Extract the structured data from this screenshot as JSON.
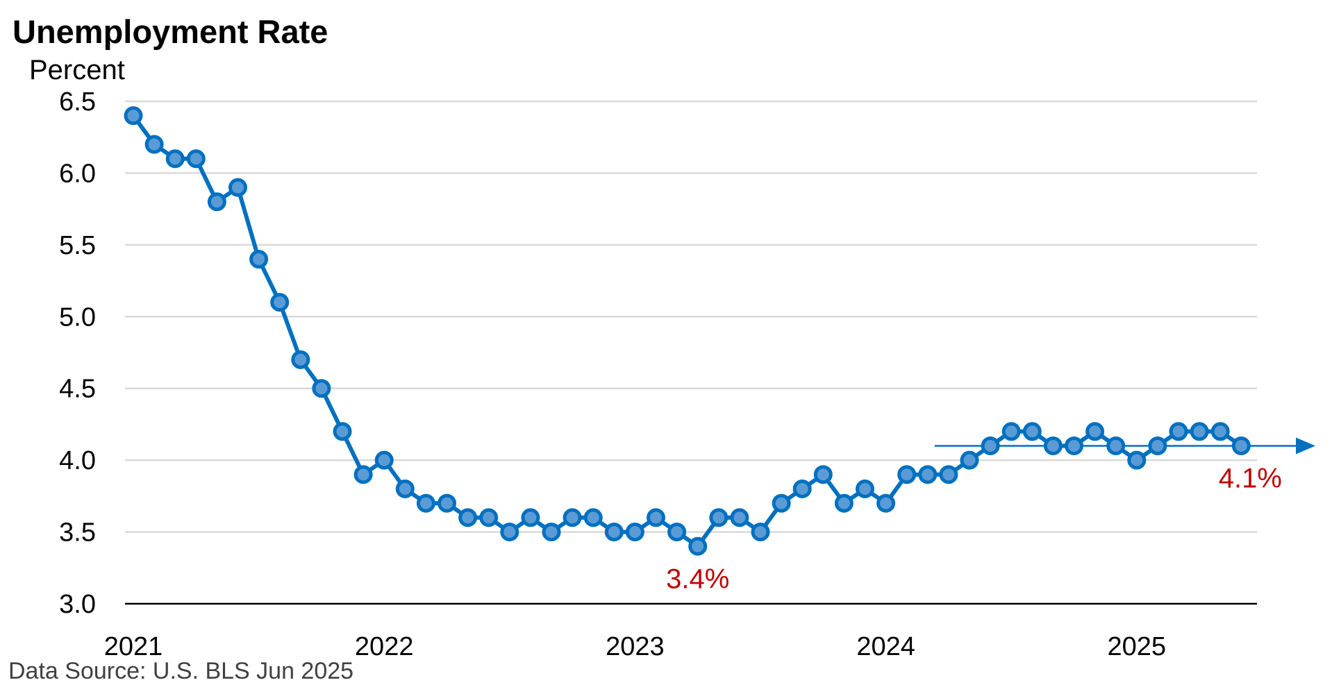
{
  "chart_data": {
    "type": "line",
    "title": "Unemployment Rate",
    "ylabel": "Percent",
    "source": "Data Source: U.S. BLS Jun 2025",
    "ylim": [
      3.0,
      6.5
    ],
    "yticks": [
      "3.0",
      "3.5",
      "4.0",
      "4.5",
      "5.0",
      "5.5",
      "6.0",
      "6.5"
    ],
    "xticks": [
      "2021",
      "2022",
      "2023",
      "2024",
      "2025"
    ],
    "grid": true,
    "start": "2021-01",
    "series": [
      {
        "name": "",
        "color": "#0070C0",
        "marker_fill": "#5B9BD5",
        "values": [
          6.4,
          6.2,
          6.1,
          6.1,
          5.8,
          5.9,
          5.4,
          5.1,
          4.7,
          4.5,
          4.2,
          3.9,
          4.0,
          3.8,
          3.7,
          3.7,
          3.6,
          3.6,
          3.5,
          3.6,
          3.5,
          3.6,
          3.6,
          3.5,
          3.5,
          3.6,
          3.5,
          3.4,
          3.6,
          3.6,
          3.5,
          3.7,
          3.8,
          3.9,
          3.7,
          3.8,
          3.7,
          3.9,
          3.9,
          3.9,
          4.0,
          4.1,
          4.2,
          4.2,
          4.1,
          4.1,
          4.2,
          4.1,
          4.0,
          4.1,
          4.2,
          4.2,
          4.2,
          4.1
        ]
      }
    ],
    "annotations": [
      {
        "text": "3.4%",
        "x": "2023-04",
        "y": 3.4,
        "color": "#C00000"
      },
      {
        "text": "4.1%",
        "x": "2025-06",
        "y": 4.1,
        "color": "#C00000"
      }
    ],
    "reference_arrow": {
      "y": 4.1,
      "from": "2024-04",
      "color": "#0070C0"
    }
  }
}
